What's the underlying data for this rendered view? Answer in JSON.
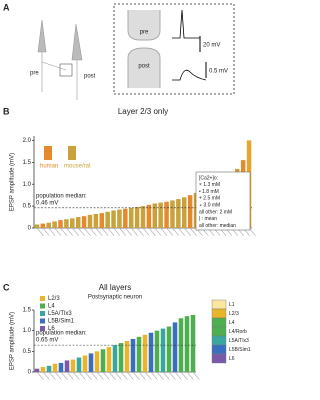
{
  "panel_a": {
    "label": "A",
    "pre": "pre",
    "post": "post",
    "pre_zoom": "pre",
    "post_zoom": "post",
    "scale_pre": "20 mV",
    "scale_post": "0.5 mV"
  },
  "chart_data": [
    {
      "type": "bar",
      "panel_label": "B",
      "title": "Layer 2/3 only",
      "y_label": "EPSP amplitude (mV)",
      "categories": [
        null,
        null,
        null,
        null,
        null,
        null,
        null,
        null,
        null,
        null,
        null,
        null,
        null,
        null,
        null,
        null,
        null,
        null,
        null,
        null,
        null,
        null,
        null,
        null,
        null,
        null,
        null,
        null,
        null,
        null,
        null,
        null,
        null,
        null,
        null,
        null,
        null
      ],
      "values": [
        0.08,
        0.1,
        0.12,
        0.15,
        0.18,
        0.2,
        0.22,
        0.25,
        0.27,
        0.3,
        0.32,
        0.34,
        0.37,
        0.4,
        0.42,
        0.44,
        0.46,
        0.48,
        0.5,
        0.53,
        0.56,
        0.58,
        0.6,
        0.63,
        0.66,
        0.7,
        0.75,
        0.8,
        0.85,
        0.9,
        0.95,
        1.0,
        1.1,
        1.2,
        1.35,
        1.55,
        2.0
      ],
      "colors": [
        "#c9a23c",
        "#e58a2c",
        "#c9a23c",
        "#c9a23c",
        "#e58a2c",
        "#c9a23c",
        "#c9a23c",
        "#c9a23c",
        "#e58a2c",
        "#c9a23c",
        "#c9a23c",
        "#e58a2c",
        "#c9a23c",
        "#c9a23c",
        "#c9a23c",
        "#e58a2c",
        "#c9a23c",
        "#c9a23c",
        "#c9a23c",
        "#e58a2c",
        "#c9a23c",
        "#c9a23c",
        "#e58a2c",
        "#c9a23c",
        "#c9a23c",
        "#c9a23c",
        "#e58a2c",
        "#c9a23c",
        "#c9a23c",
        "#e58a2c",
        "#c9a23c",
        "#e58a2c",
        "#c9a23c",
        "#e58a2c",
        "#c9a23c",
        "#e58a2c",
        "#e5a62c"
      ],
      "ylim": [
        0,
        2.1
      ],
      "yticks": [
        0,
        0.5,
        {
          "value": 1,
          "label": "1.0"
        },
        1.5,
        {
          "value": 2,
          "label": "2.0"
        }
      ],
      "median_text": "population median:",
      "median": {
        "value": 0.46,
        "label": "0.46 mV"
      },
      "legend": [
        {
          "name": "human",
          "color": "#e58a2c"
        },
        {
          "name": "mouse/rat",
          "color": "#c9a23c"
        }
      ],
      "notes": [
        "[Ca2+]o:",
        "× 1.3 mM",
        "• 1.8 mM",
        "+ 2.5 mM",
        "∘ 3.0 mM",
        "all other: 2 mM",
        "| : mean",
        "all other: median"
      ]
    },
    {
      "type": "bar",
      "panel_label": "C",
      "title": "All layers",
      "subtitle": "Postsynaptic neuron",
      "y_label": "EPSP amplitude (mV)",
      "categories": [
        null,
        null,
        null,
        null,
        null,
        null,
        null,
        null,
        null,
        null,
        null,
        null,
        null,
        null,
        null,
        null,
        null,
        null,
        null,
        null,
        null,
        null,
        null,
        null,
        null,
        null,
        null
      ],
      "values": [
        0.08,
        0.12,
        0.15,
        0.2,
        0.22,
        0.28,
        0.3,
        0.35,
        0.4,
        0.45,
        0.5,
        0.55,
        0.6,
        0.65,
        0.7,
        0.75,
        0.8,
        0.85,
        0.9,
        0.95,
        1.0,
        1.05,
        1.1,
        1.2,
        1.3,
        1.35,
        1.38
      ],
      "colors": [
        "#7a5aa8",
        "#e8b52c",
        "#3aa6a0",
        "#e8b52c",
        "#3a6fc0",
        "#7a5aa8",
        "#e8b52c",
        "#3aa6a0",
        "#e8b52c",
        "#3a6fc0",
        "#e8b52c",
        "#4fae4f",
        "#e8b52c",
        "#3aa6a0",
        "#4fae4f",
        "#e8b52c",
        "#3a6fc0",
        "#4fae4f",
        "#e8b52c",
        "#3a6fc0",
        "#4fae4f",
        "#3aa6a0",
        "#4fae4f",
        "#3a6fc0",
        "#4fae4f",
        "#4fae4f",
        "#4fae4f"
      ],
      "ylim": [
        0,
        1.5
      ],
      "yticks": [
        0,
        0.5,
        {
          "value": 1,
          "label": "1.0"
        },
        1.5
      ],
      "median_text": "population median:",
      "median": {
        "value": 0.65,
        "label": "0.65 mV"
      },
      "legend": [
        {
          "name": "L2/3",
          "color": "#e8b52c"
        },
        {
          "name": "L4",
          "color": "#4fae4f"
        },
        {
          "name": "L5A/Tlx3",
          "color": "#3aa6a0"
        },
        {
          "name": "L5B/Sim1",
          "color": "#3a6fc0"
        },
        {
          "name": "L6",
          "color": "#7a5aa8"
        }
      ],
      "layers": [
        "L1",
        "L2/3",
        "L4",
        "L4/Rorb",
        "L5A/Tlx3",
        "L5B/Sim1",
        "L6"
      ]
    }
  ]
}
